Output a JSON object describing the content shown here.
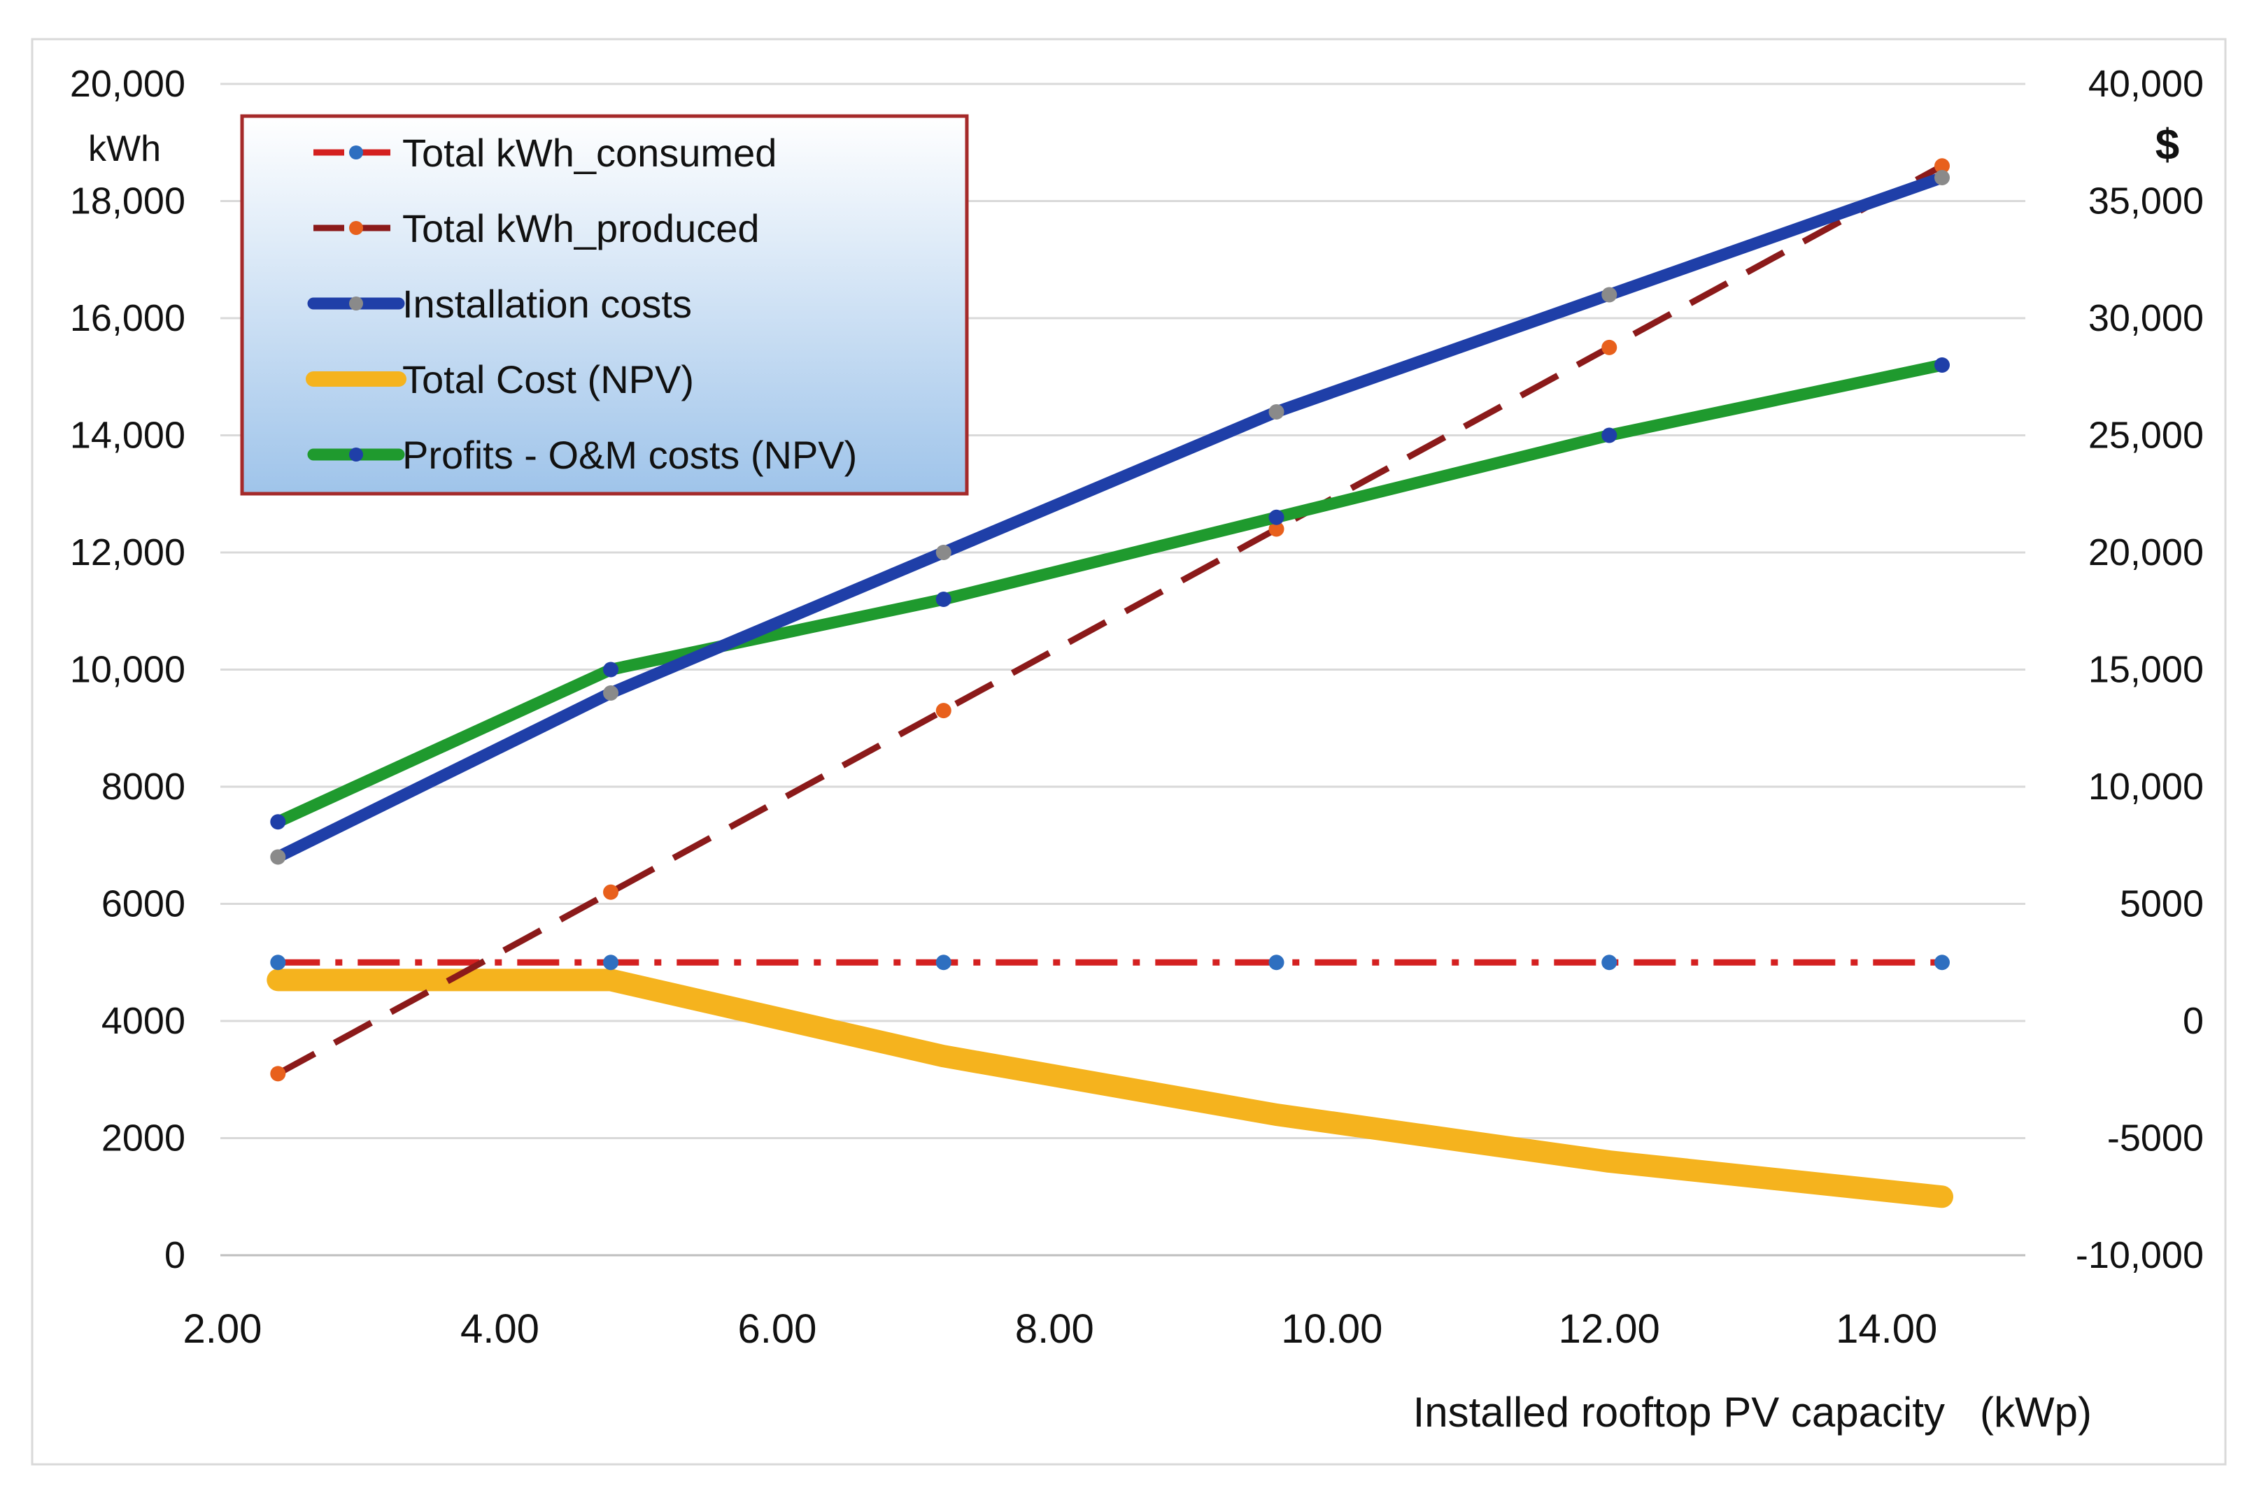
{
  "chart_data": {
    "type": "line",
    "x": [
      2.4,
      4.8,
      7.2,
      9.6,
      12.0,
      14.4
    ],
    "xlim": [
      2.0,
      14.4
    ],
    "xticks": [
      "2.00",
      "4.00",
      "6.00",
      "8.00",
      "10.00",
      "12.00",
      "14.00"
    ],
    "xlabel": "Installed rooftop PV capacity   (kWp)",
    "left_axis": {
      "unit": "kWh",
      "ylim": [
        0,
        20000
      ],
      "ticks": [
        "0",
        "2000",
        "4000",
        "6000",
        "8000",
        "10,000",
        "12,000",
        "14,000",
        "16,000",
        "18,000",
        "20,000"
      ]
    },
    "right_axis": {
      "unit": "$",
      "ylim": [
        -10000,
        40000
      ],
      "ticks": [
        "-10,000",
        "-5000",
        "0",
        "5000",
        "10,000",
        "15,000",
        "20,000",
        "25,000",
        "30,000",
        "35,000",
        "40,000"
      ]
    },
    "series": [
      {
        "name": "Total kWh_consumed",
        "axis": "left",
        "color": "#d42020",
        "marker_color": "#2e6fc0",
        "style": "dashdot",
        "values": [
          5000,
          5000,
          5000,
          5000,
          5000,
          5000
        ]
      },
      {
        "name": "Total kWh_produced",
        "axis": "left",
        "color": "#8b1a1a",
        "marker_color": "#e8601c",
        "style": "dashed",
        "values": [
          3100,
          6200,
          9300,
          12400,
          15500,
          18600
        ]
      },
      {
        "name": "Installation costs",
        "axis": "right",
        "color": "#1f3fa8",
        "marker_color": "#8a8a8a",
        "style": "solid",
        "values": [
          7000,
          14000,
          20000,
          26000,
          31000,
          36000
        ]
      },
      {
        "name": "Total Cost (NPV)",
        "axis": "right",
        "color": "#f5b31e",
        "marker_color": "#f5b31e",
        "style": "solid-thick",
        "values": [
          1750,
          1750,
          -1500,
          -4000,
          -6000,
          -7500
        ]
      },
      {
        "name": "Profits - O&M costs (NPV)",
        "axis": "right",
        "color": "#1f9a2e",
        "marker_color": "#1f3fa8",
        "style": "solid",
        "values": [
          8500,
          15000,
          18000,
          21500,
          25000,
          28000
        ]
      }
    ],
    "legend": {
      "placement": "top-left",
      "background_top": "#ffffff",
      "background_bottom": "#9fc4ea",
      "border": "#a52a2a"
    },
    "grid": true
  }
}
